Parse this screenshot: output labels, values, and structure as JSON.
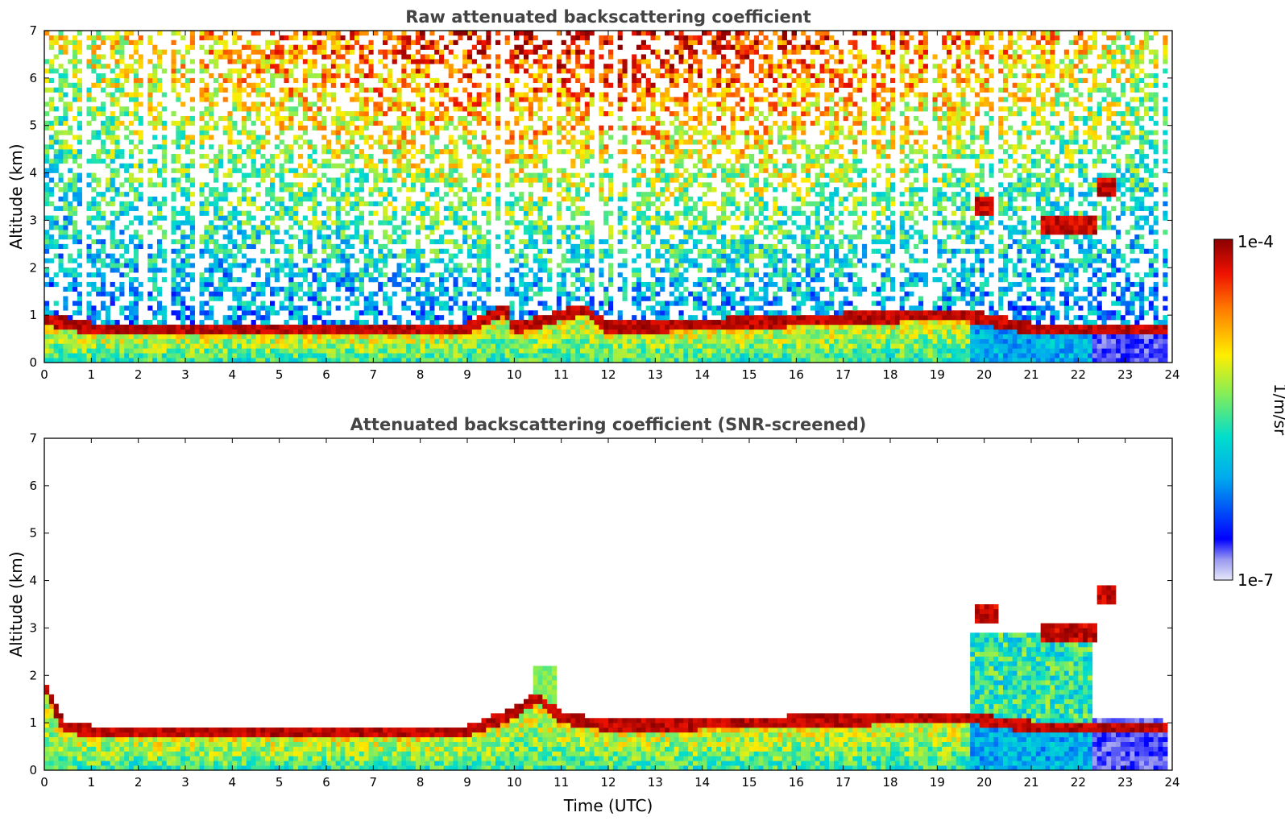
{
  "chart_data": [
    {
      "type": "heatmap",
      "title": "Raw attenuated backscattering coefficient",
      "xlabel": "",
      "ylabel": "Altitude (km)",
      "xlim": [
        0,
        24
      ],
      "ylim": [
        0,
        7
      ],
      "x_ticks": [
        "0",
        "1",
        "2",
        "3",
        "4",
        "5",
        "6",
        "7",
        "8",
        "9",
        "10",
        "11",
        "12",
        "13",
        "14",
        "15",
        "16",
        "17",
        "18",
        "19",
        "20",
        "21",
        "22",
        "23",
        "24"
      ],
      "y_ticks": [
        "0",
        "1",
        "2",
        "3",
        "4",
        "5",
        "6",
        "7"
      ],
      "boundary_layer_top_km": [
        [
          0,
          0.8
        ],
        [
          1,
          0.6
        ],
        [
          3,
          0.6
        ],
        [
          5,
          0.6
        ],
        [
          9,
          0.6
        ],
        [
          9.8,
          1.0
        ],
        [
          10,
          0.6
        ],
        [
          11.5,
          1.0
        ],
        [
          12,
          0.6
        ],
        [
          19.5,
          0.9
        ],
        [
          21,
          0.6
        ]
      ],
      "cloud_layers": [
        {
          "x": [
            19.8,
            20.3
          ],
          "altitude_km": 3.3
        },
        {
          "x": [
            21.2,
            22.4
          ],
          "altitude_km": 2.9
        },
        {
          "x": [
            22.4,
            22.8
          ],
          "altitude_km": 3.7
        }
      ]
    },
    {
      "type": "heatmap",
      "title": "Attenuated backscattering coefficient (SNR-screened)",
      "xlabel": "Time (UTC)",
      "ylabel": "Altitude (km)",
      "xlim": [
        0,
        24
      ],
      "ylim": [
        0,
        7
      ],
      "x_ticks": [
        "0",
        "1",
        "2",
        "3",
        "4",
        "5",
        "6",
        "7",
        "8",
        "9",
        "10",
        "11",
        "12",
        "13",
        "14",
        "15",
        "16",
        "17",
        "18",
        "19",
        "20",
        "21",
        "22",
        "23",
        "24"
      ],
      "y_ticks": [
        "0",
        "1",
        "2",
        "3",
        "4",
        "5",
        "6",
        "7"
      ],
      "boundary_layer_top_km": [
        [
          0,
          1.7
        ],
        [
          0.4,
          0.8
        ],
        [
          1,
          0.7
        ],
        [
          3,
          0.7
        ],
        [
          9,
          0.7
        ],
        [
          9.8,
          1.0
        ],
        [
          10.5,
          1.4
        ],
        [
          11,
          1.0
        ],
        [
          12,
          0.8
        ],
        [
          19.5,
          1.0
        ],
        [
          21,
          0.8
        ]
      ],
      "cloud_layers": [
        {
          "x": [
            19.8,
            20.3
          ],
          "altitude_km": 3.3
        },
        {
          "x": [
            21.2,
            22.4
          ],
          "altitude_km": 2.9
        },
        {
          "x": [
            22.4,
            22.8
          ],
          "altitude_km": 3.7
        }
      ]
    }
  ],
  "colorbar": {
    "label": "1/m/sr",
    "max_label": "1e-4",
    "min_label": "1e-7",
    "scale": "log",
    "colormap": [
      "#e8e8fa",
      "#0000ff",
      "#00ccee",
      "#66ee66",
      "#ffee00",
      "#ff6600",
      "#8b0000"
    ]
  }
}
